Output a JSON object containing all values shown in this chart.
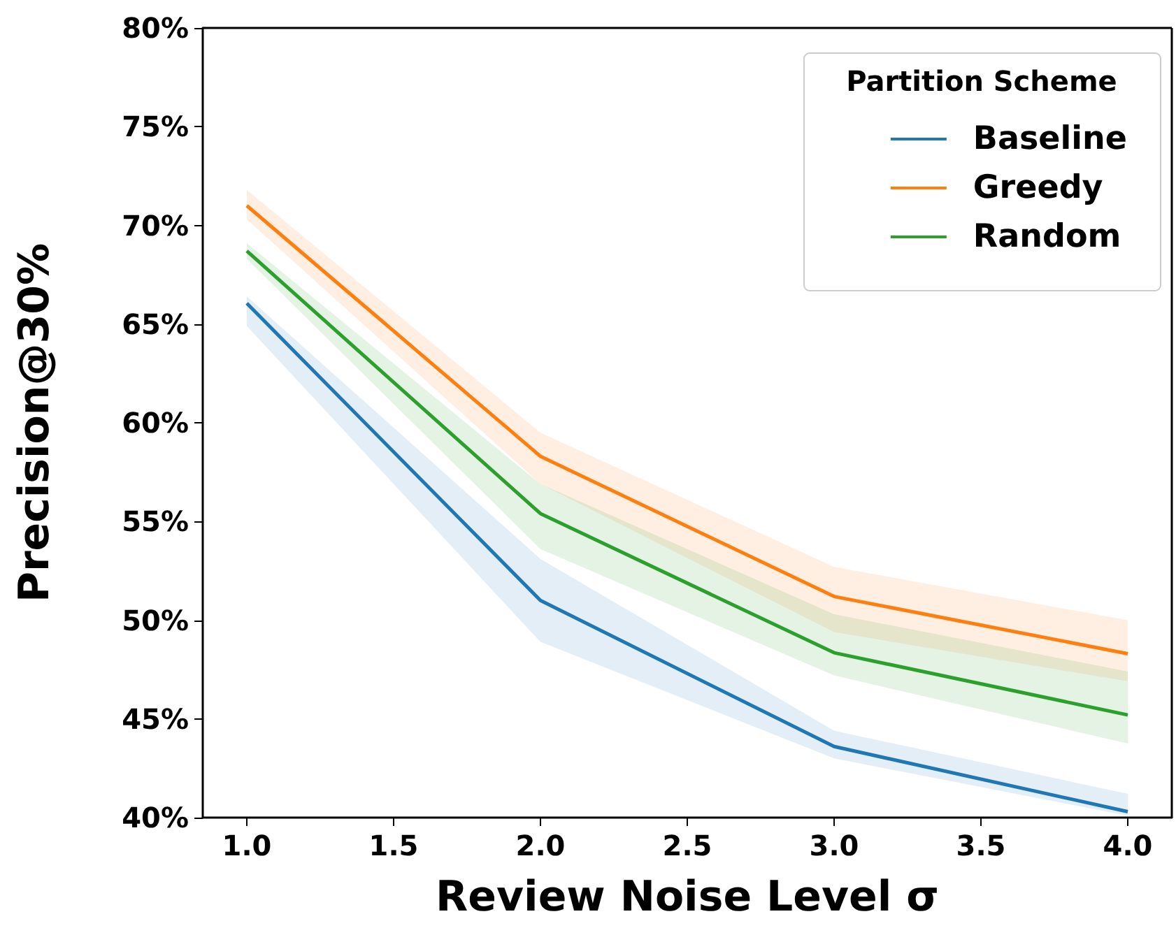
{
  "chart_data": {
    "type": "line",
    "xlabel": "Review Noise Level σ",
    "ylabel": "Precision@30%",
    "legend_title": "Partition Scheme",
    "x": [
      1,
      2,
      3,
      4
    ],
    "series": [
      {
        "name": "Baseline",
        "color": "#1f77b4",
        "values": [
          66.05,
          51.0,
          43.6,
          40.3
        ],
        "lower": [
          64.9,
          48.9,
          43.0,
          40.1
        ],
        "upper": [
          66.4,
          53.1,
          44.4,
          41.2
        ]
      },
      {
        "name": "Greedy",
        "color": "#ff7f0e",
        "values": [
          71.0,
          58.3,
          51.2,
          48.3
        ],
        "lower": [
          70.3,
          56.9,
          49.4,
          46.9
        ],
        "upper": [
          71.8,
          59.5,
          52.7,
          50.0
        ]
      },
      {
        "name": "Random",
        "color": "#2ca02c",
        "values": [
          68.7,
          55.4,
          48.35,
          45.2
        ],
        "lower": [
          68.3,
          53.6,
          47.2,
          43.75
        ],
        "upper": [
          69.1,
          56.9,
          50.3,
          47.4
        ]
      }
    ],
    "xlim": [
      0.85,
      4.15
    ],
    "xticks": [
      {
        "value": 1,
        "label": "1.0"
      },
      {
        "value": 1.5,
        "label": "1.5"
      },
      {
        "value": 2,
        "label": "2.0"
      },
      {
        "value": 2.5,
        "label": "2.5"
      },
      {
        "value": 3,
        "label": "3.0"
      },
      {
        "value": 3.5,
        "label": "3.5"
      },
      {
        "value": 4,
        "label": "4.0"
      }
    ],
    "ylim": [
      40,
      80
    ],
    "yticks": [
      {
        "value": 40,
        "label": "40%"
      },
      {
        "value": 45,
        "label": "45%"
      },
      {
        "value": 50,
        "label": "50%"
      },
      {
        "value": 55,
        "label": "55%"
      },
      {
        "value": 60,
        "label": "60%"
      },
      {
        "value": 65,
        "label": "65%"
      },
      {
        "value": 70,
        "label": "70%"
      },
      {
        "value": 75,
        "label": "75%"
      },
      {
        "value": 80,
        "label": "80%"
      }
    ],
    "legend": "top right",
    "grid": false,
    "marker": "none",
    "line_style": "solid"
  }
}
